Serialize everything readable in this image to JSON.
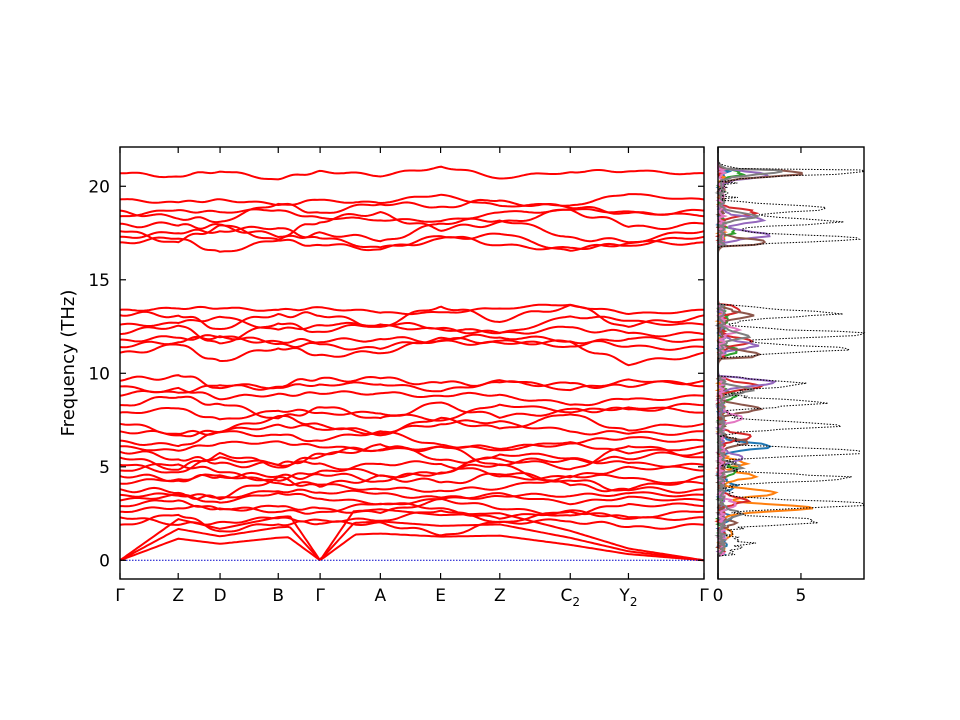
{
  "chart_data": [
    {
      "type": "line",
      "subtype": "phonon band structure",
      "ylabel": "Frequency (THz)",
      "ylim": [
        -1.0,
        22.1
      ],
      "yticks": [
        0,
        5,
        10,
        15,
        20
      ],
      "grid": false,
      "line_color": "#ff0000",
      "zero_line_color": "#0000cc",
      "k_points": [
        {
          "label": "Γ",
          "sub": "",
          "x": 0.0
        },
        {
          "label": "Z",
          "sub": "",
          "x": 0.57
        },
        {
          "label": "D",
          "sub": "",
          "x": 0.98
        },
        {
          "label": "B",
          "sub": "",
          "x": 1.55
        },
        {
          "label": "Γ",
          "sub": "",
          "x": 1.96
        },
        {
          "label": "A",
          "sub": "",
          "x": 2.55
        },
        {
          "label": "E",
          "sub": "",
          "x": 3.14
        },
        {
          "label": "Z",
          "sub": "",
          "x": 3.72
        },
        {
          "label": "C",
          "sub": "2",
          "x": 4.41
        },
        {
          "label": "Y",
          "sub": "2",
          "x": 4.98
        },
        {
          "label": "Γ",
          "sub": "",
          "x": 5.72
        }
      ],
      "acoustic_max_thz": {
        "at_x": [
          0.57,
          0.98,
          1.55,
          2.55,
          3.14,
          3.72,
          4.41,
          4.98
        ],
        "values": [
          2.1,
          1.6,
          2.2,
          2.6,
          2.3,
          2.4,
          1.5,
          0.6
        ]
      },
      "band_frequencies_at_gamma_thz": [
        0,
        0,
        0,
        1.9,
        2.3,
        2.6,
        2.9,
        3.2,
        3.5,
        3.8,
        4.1,
        4.5,
        4.8,
        5.1,
        5.5,
        5.8,
        6.1,
        6.4,
        6.9,
        7.3,
        7.9,
        8.3,
        8.8,
        9.3,
        9.6,
        11.1,
        11.4,
        11.8,
        12.1,
        12.6,
        13.1,
        13.4,
        17.0,
        17.3,
        17.6,
        18.0,
        18.4,
        18.7,
        19.3,
        20.7
      ]
    },
    {
      "type": "line",
      "subtype": "projected density of states",
      "orientation": "horizontal",
      "xlim": [
        0,
        8.8
      ],
      "xticks": [
        0,
        5
      ],
      "ylim": [
        -1.0,
        22.1
      ],
      "series": [
        {
          "color": "#1f77b4",
          "peaks": [
            [
              1.0,
              0.3
            ],
            [
              2.3,
              0.7
            ],
            [
              4.0,
              0.9
            ],
            [
              6.1,
              3.0
            ],
            [
              20.7,
              0.3
            ]
          ]
        },
        {
          "color": "#ff7f0e",
          "peaks": [
            [
              1.5,
              0.8
            ],
            [
              2.8,
              5.4
            ],
            [
              3.6,
              3.4
            ],
            [
              4.5,
              2.0
            ],
            [
              5.2,
              1.4
            ]
          ]
        },
        {
          "color": "#2ca02c",
          "peaks": [
            [
              4.8,
              1.0
            ],
            [
              8.8,
              0.9
            ],
            [
              11.2,
              1.0
            ],
            [
              12.9,
              0.5
            ],
            [
              17.6,
              0.8
            ],
            [
              20.7,
              1.2
            ]
          ]
        },
        {
          "color": "#d62728",
          "peaks": [
            [
              3.2,
              1.5
            ],
            [
              6.6,
              1.8
            ],
            [
              9.3,
              2.3
            ],
            [
              11.7,
              1.9
            ],
            [
              13.4,
              1.2
            ],
            [
              18.6,
              2.0
            ]
          ]
        },
        {
          "color": "#9467bd",
          "peaks": [
            [
              5.5,
              1.3
            ],
            [
              9.5,
              3.2
            ],
            [
              11.5,
              2.1
            ],
            [
              17.4,
              3.0
            ],
            [
              18.2,
              2.5
            ],
            [
              20.6,
              2.8
            ]
          ]
        },
        {
          "color": "#8c564b",
          "peaks": [
            [
              2.0,
              0.8
            ],
            [
              6.3,
              1.6
            ],
            [
              8.1,
              2.4
            ],
            [
              11.0,
              2.3
            ],
            [
              13.1,
              1.8
            ],
            [
              17.0,
              2.8
            ],
            [
              20.7,
              5.0
            ]
          ]
        },
        {
          "color": "#e377c2",
          "peaks": [
            [
              3.0,
              1.0
            ],
            [
              7.6,
              1.2
            ],
            [
              12.3,
              0.9
            ]
          ]
        },
        {
          "color": "#7f7f7f",
          "peaks": [
            [
              2.5,
              1.1
            ],
            [
              5.0,
              1.2
            ],
            [
              9.1,
              1.8
            ],
            [
              12.0,
              1.6
            ],
            [
              18.4,
              2.1
            ],
            [
              20.8,
              3.5
            ]
          ]
        },
        {
          "color": "#000000",
          "dotted": true,
          "name_role": "total",
          "peaks": [
            [
              0.9,
              1.2
            ],
            [
              2.1,
              5.6
            ],
            [
              3.0,
              9.0
            ],
            [
              4.4,
              7.4
            ],
            [
              5.8,
              8.6
            ],
            [
              7.2,
              6.4
            ],
            [
              8.4,
              5.6
            ],
            [
              9.4,
              4.5
            ],
            [
              11.3,
              7.1
            ],
            [
              12.1,
              8.4
            ],
            [
              13.2,
              6.7
            ],
            [
              17.2,
              7.8
            ],
            [
              18.1,
              6.5
            ],
            [
              18.8,
              6.2
            ],
            [
              20.8,
              9.0
            ]
          ]
        }
      ]
    }
  ]
}
